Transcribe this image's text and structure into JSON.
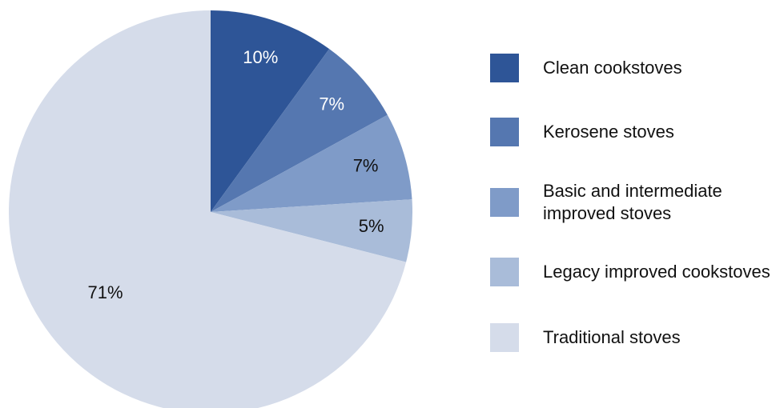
{
  "chart_data": {
    "type": "pie",
    "categories": [
      "Clean cookstoves",
      "Kerosene stoves",
      "Basic and intermediate improved stoves",
      "Legacy improved cookstoves",
      "Traditional stoves"
    ],
    "values": [
      10,
      7,
      7,
      5,
      71
    ],
    "value_labels": [
      "10%",
      "7%",
      "7%",
      "5%",
      "71%"
    ],
    "colors": [
      "#2e5597",
      "#5577b0",
      "#7f9bc8",
      "#a9bcd9",
      "#d5dcea"
    ],
    "legend": "right"
  }
}
